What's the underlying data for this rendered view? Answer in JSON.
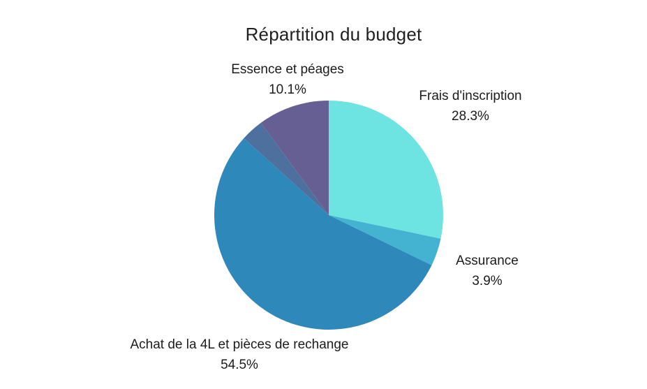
{
  "title": "Répartition du budget",
  "colors": {
    "background": "#ffffff",
    "text": "#212121"
  },
  "chart_data": {
    "type": "pie",
    "title": "Répartition du budget",
    "start_angle_deg": 0,
    "direction": "clockwise",
    "legend": "none",
    "slices": [
      {
        "label": "Frais d'inscription",
        "value_pct": 28.3,
        "pct_text": "28.3%",
        "color": "#6ee4e2"
      },
      {
        "label": "Assurance",
        "value_pct": 3.9,
        "pct_text": "3.9%",
        "color": "#44b3d1"
      },
      {
        "label": "Achat de la 4L et pièces de rechange",
        "value_pct": 54.5,
        "pct_text": "54.5%",
        "color": "#2e88ba"
      },
      {
        "label": "",
        "value_pct": 3.2,
        "pct_text": "",
        "color": "#4e709e"
      },
      {
        "label": "Essence et péages",
        "value_pct": 10.1,
        "pct_text": "10.1%",
        "color": "#655f93"
      }
    ]
  }
}
